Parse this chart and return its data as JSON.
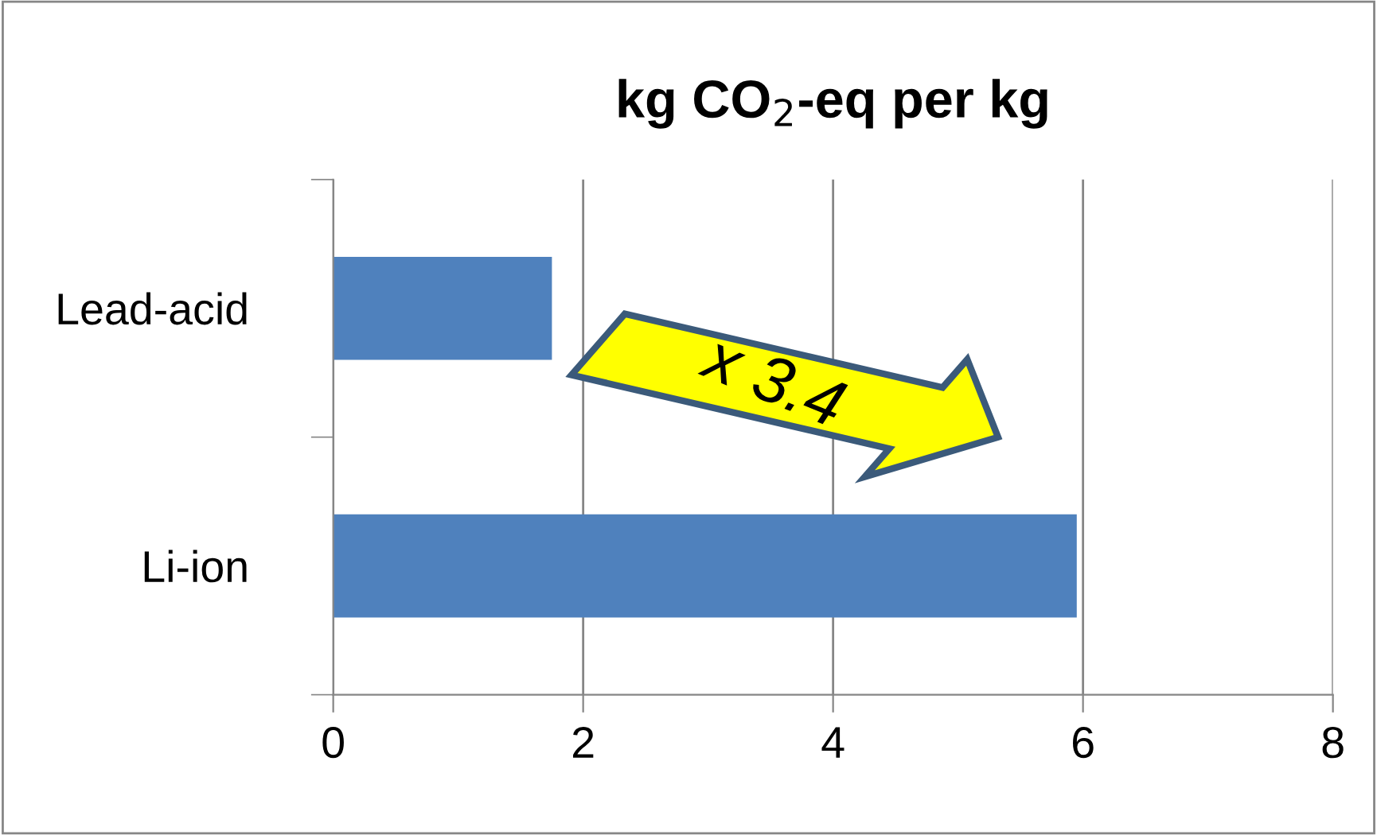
{
  "chart_data": {
    "type": "bar",
    "orientation": "horizontal",
    "title": "kg CO$_{2}$-eq per kg",
    "categories": [
      "Lead-acid",
      "Li-ion"
    ],
    "values": [
      1.75,
      5.95
    ],
    "color": "#4f81bd",
    "xlim": [
      0,
      8
    ],
    "xticks": [
      0,
      2,
      4,
      6,
      8
    ],
    "grid": "x",
    "annotations": [
      "x 3.4"
    ]
  }
}
